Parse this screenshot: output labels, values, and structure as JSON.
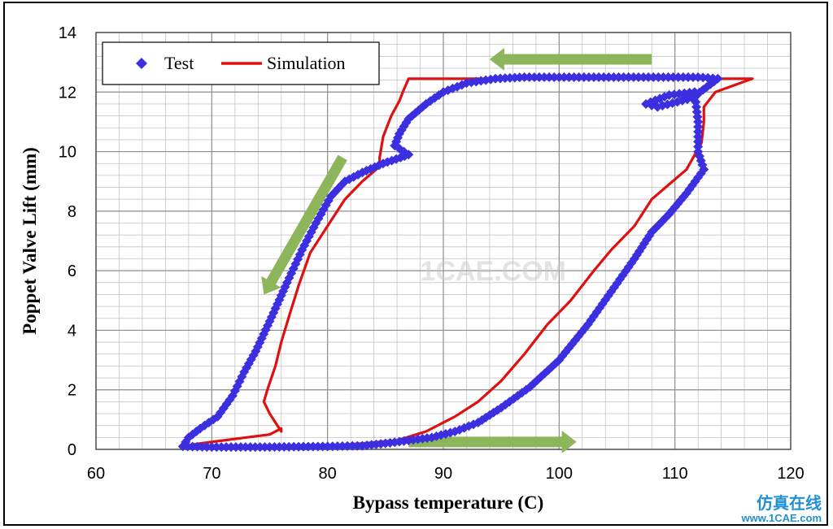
{
  "chart_data": {
    "type": "line",
    "xlabel": "Bypass temperature (C)",
    "ylabel": "Poppet Valve Lift (mm)",
    "xlim": [
      60,
      120
    ],
    "ylim": [
      0,
      14
    ],
    "xticks": [
      60,
      70,
      80,
      90,
      100,
      110,
      120
    ],
    "yticks": [
      0,
      2,
      4,
      6,
      8,
      10,
      12,
      14
    ],
    "grid": true,
    "legend_position": "top-left",
    "series": [
      {
        "name": "Test",
        "marker": "diamond",
        "color": "#3b2fe0",
        "x": [
          67.5,
          68,
          69,
          70.5,
          71.8,
          72.8,
          73.8,
          75,
          76.5,
          77.8,
          79,
          80.3,
          81.5,
          83,
          84.8,
          86.3,
          87,
          85.8,
          86.2,
          87,
          88.5,
          90,
          92,
          94.5,
          97,
          100,
          103,
          106,
          109,
          112,
          113.7,
          111.5,
          108.5,
          107.5,
          109.5,
          111.7,
          112,
          112,
          112.5,
          111,
          109.5,
          108,
          106.5,
          104.5,
          102.5,
          100,
          97.5,
          95,
          93,
          91,
          89,
          87,
          85,
          83,
          80,
          75,
          70,
          67.5
        ],
        "y": [
          0.1,
          0.4,
          0.7,
          1.1,
          1.8,
          2.6,
          3.3,
          4.3,
          5.6,
          6.7,
          7.6,
          8.5,
          9.0,
          9.3,
          9.6,
          9.8,
          9.9,
          10.2,
          10.6,
          11.1,
          11.6,
          12.0,
          12.3,
          12.45,
          12.5,
          12.5,
          12.5,
          12.5,
          12.5,
          12.5,
          12.45,
          11.8,
          11.5,
          11.6,
          11.9,
          12.0,
          11.0,
          10.0,
          9.4,
          8.6,
          7.9,
          7.3,
          6.4,
          5.3,
          4.2,
          3.0,
          2.1,
          1.4,
          0.9,
          0.6,
          0.4,
          0.3,
          0.2,
          0.12,
          0.1,
          0.08,
          0.08,
          0.1
        ]
      },
      {
        "name": "Simulation",
        "marker": "none",
        "color": "#e01010",
        "x": [
          67.5,
          69,
          71,
          73,
          75,
          76,
          76,
          75,
          74.5,
          74.8,
          75.5,
          76,
          76.7,
          77.5,
          78.5,
          80,
          81.5,
          83,
          84.5,
          84.5,
          84.8,
          85.5,
          86.2,
          86.5,
          87,
          88,
          90,
          92,
          95,
          100,
          105,
          110,
          113,
          116.7,
          113.5,
          112.5,
          112.5,
          112.3,
          111,
          109.5,
          108,
          106.5,
          104.5,
          103,
          101,
          99,
          97,
          95,
          93,
          91,
          88.5,
          86,
          83,
          80,
          75,
          71,
          67.5
        ],
        "y": [
          0.1,
          0.2,
          0.3,
          0.4,
          0.5,
          0.7,
          0.6,
          1.2,
          1.6,
          2.0,
          2.8,
          3.6,
          4.5,
          5.5,
          6.6,
          7.5,
          8.4,
          9.0,
          9.5,
          9.8,
          10.5,
          11.2,
          11.7,
          12.0,
          12.45,
          12.45,
          12.45,
          12.45,
          12.45,
          12.45,
          12.45,
          12.45,
          12.45,
          12.45,
          12.0,
          11.5,
          11.0,
          10.3,
          9.4,
          8.9,
          8.4,
          7.5,
          6.7,
          6.0,
          5.0,
          4.2,
          3.2,
          2.3,
          1.6,
          1.1,
          0.6,
          0.3,
          0.2,
          0.12,
          0.1,
          0.1,
          0.1
        ]
      }
    ],
    "annotations": [
      {
        "type": "arrow",
        "color": "#8db55a",
        "from": [
          108,
          13.1
        ],
        "to": [
          94,
          13.1
        ]
      },
      {
        "type": "arrow",
        "color": "#8db55a",
        "from": [
          87,
          0.25
        ],
        "to": [
          101.5,
          0.25
        ]
      },
      {
        "type": "arrow",
        "color": "#8db55a",
        "from": [
          81.3,
          9.8
        ],
        "to": [
          74.5,
          5.2
        ]
      }
    ]
  },
  "watermark": {
    "center": "1CAE.COM",
    "brand_cn": "仿真在线",
    "url": "www.1CAE.com"
  }
}
